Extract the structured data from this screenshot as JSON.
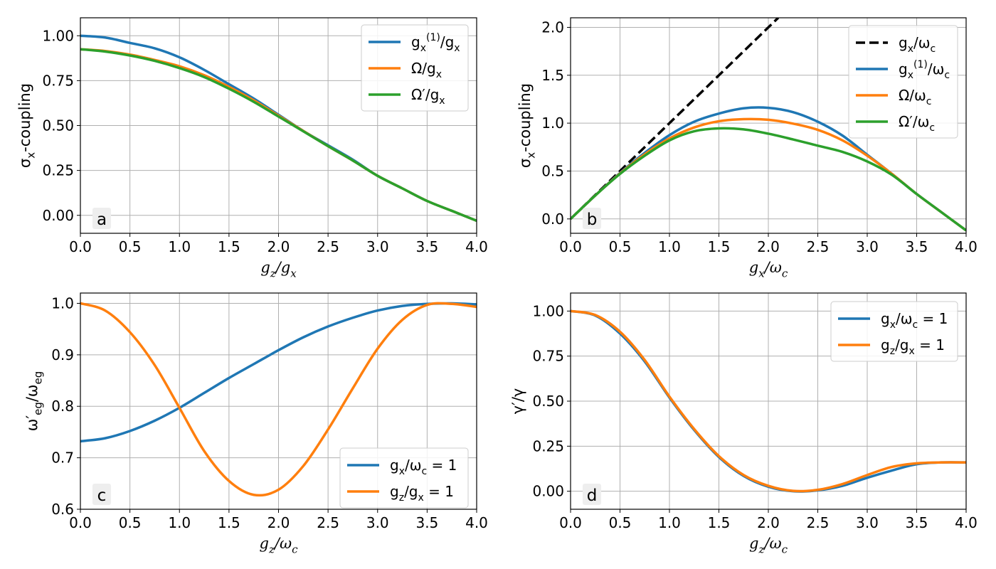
{
  "colors": {
    "blue": "#1f77b4",
    "orange": "#ff7f0e",
    "green": "#2ca02c",
    "black": "#000000",
    "grid": "#b0b0b0"
  },
  "chart_data": [
    {
      "panel": "a",
      "type": "line",
      "xlabel": "g_z/g_x",
      "ylabel": "σ_x-coupling",
      "xlim": [
        0,
        4
      ],
      "ylim": [
        -0.1,
        1.1
      ],
      "xticks": [
        "0.0",
        "0.5",
        "1.0",
        "1.5",
        "2.0",
        "2.5",
        "3.0",
        "3.5",
        "4.0"
      ],
      "yticks": [
        "0.00",
        "0.25",
        "0.50",
        "0.75",
        "1.00"
      ],
      "grid": true,
      "legend": "top-right",
      "series": [
        {
          "name": "g_x^(1)/g_x",
          "color": "blue",
          "x": [
            0,
            0.25,
            0.5,
            0.75,
            1.0,
            1.25,
            1.5,
            1.75,
            2.0,
            2.25,
            2.5,
            2.75,
            3.0,
            3.25,
            3.5,
            3.75,
            4.0
          ],
          "y": [
            1.0,
            0.99,
            0.96,
            0.93,
            0.88,
            0.81,
            0.73,
            0.65,
            0.56,
            0.47,
            0.39,
            0.31,
            0.22,
            0.15,
            0.08,
            0.025,
            -0.03
          ]
        },
        {
          "name": "Ω/g_x",
          "color": "orange",
          "x": [
            0,
            0.25,
            0.5,
            0.75,
            1.0,
            1.25,
            1.5,
            1.75,
            2.0,
            2.25,
            2.5,
            2.75,
            3.0,
            3.25,
            3.5,
            3.75,
            4.0
          ],
          "y": [
            0.925,
            0.915,
            0.895,
            0.865,
            0.83,
            0.78,
            0.715,
            0.64,
            0.555,
            0.47,
            0.385,
            0.305,
            0.22,
            0.15,
            0.08,
            0.025,
            -0.03
          ]
        },
        {
          "name": "Ω′/g_x",
          "color": "green",
          "x": [
            0,
            0.25,
            0.5,
            0.75,
            1.0,
            1.25,
            1.5,
            1.75,
            2.0,
            2.25,
            2.5,
            2.75,
            3.0,
            3.25,
            3.5,
            3.75,
            4.0
          ],
          "y": [
            0.925,
            0.912,
            0.89,
            0.86,
            0.82,
            0.77,
            0.705,
            0.632,
            0.55,
            0.468,
            0.385,
            0.305,
            0.22,
            0.15,
            0.08,
            0.025,
            -0.03
          ]
        }
      ]
    },
    {
      "panel": "b",
      "type": "line",
      "xlabel": "g_x/ω_c",
      "ylabel": "σ_x-coupling",
      "xlim": [
        0,
        4
      ],
      "ylim": [
        -0.15,
        2.1
      ],
      "xticks": [
        "0.0",
        "0.5",
        "1.0",
        "1.5",
        "2.0",
        "2.5",
        "3.0",
        "3.5",
        "4.0"
      ],
      "yticks": [
        "0.0",
        "0.5",
        "1.0",
        "1.5",
        "2.0"
      ],
      "grid": true,
      "legend": "top-right",
      "series": [
        {
          "name": "g_x/ω_c",
          "color": "black",
          "dashed": true,
          "x": [
            0,
            2.1
          ],
          "y": [
            0,
            2.1
          ]
        },
        {
          "name": "g_x^(1)/ω_c",
          "color": "blue",
          "x": [
            0,
            0.25,
            0.5,
            0.75,
            1.0,
            1.25,
            1.5,
            1.75,
            2.0,
            2.25,
            2.5,
            2.75,
            3.0,
            3.25,
            3.5,
            3.75,
            4.0
          ],
          "y": [
            0,
            0.245,
            0.48,
            0.69,
            0.875,
            1.015,
            1.1,
            1.155,
            1.16,
            1.115,
            1.015,
            0.87,
            0.67,
            0.47,
            0.26,
            0.07,
            -0.12
          ]
        },
        {
          "name": "Ω/ω_c",
          "color": "orange",
          "x": [
            0,
            0.25,
            0.5,
            0.75,
            1.0,
            1.25,
            1.5,
            1.75,
            2.0,
            2.25,
            2.5,
            2.75,
            3.0,
            3.25,
            3.5,
            3.75,
            4.0
          ],
          "y": [
            0,
            0.245,
            0.475,
            0.675,
            0.84,
            0.955,
            1.02,
            1.042,
            1.035,
            0.995,
            0.93,
            0.82,
            0.66,
            0.47,
            0.26,
            0.07,
            -0.12
          ]
        },
        {
          "name": "Ω′/ω_c",
          "color": "green",
          "x": [
            0,
            0.25,
            0.5,
            0.75,
            1.0,
            1.25,
            1.5,
            1.75,
            2.0,
            2.25,
            2.5,
            2.75,
            3.0,
            3.25,
            3.5,
            3.75,
            4.0
          ],
          "y": [
            0,
            0.245,
            0.47,
            0.66,
            0.82,
            0.915,
            0.945,
            0.935,
            0.89,
            0.83,
            0.765,
            0.7,
            0.6,
            0.46,
            0.26,
            0.07,
            -0.12
          ]
        }
      ]
    },
    {
      "panel": "c",
      "type": "line",
      "xlabel": "g_z/ω_c",
      "ylabel": "ω′_eg/ω_eg",
      "xlim": [
        0,
        4
      ],
      "ylim": [
        0.6,
        1.02
      ],
      "xticks": [
        "0.0",
        "0.5",
        "1.0",
        "1.5",
        "2.0",
        "2.5",
        "3.0",
        "3.5",
        "4.0"
      ],
      "yticks": [
        "0.6",
        "0.7",
        "0.8",
        "0.9",
        "1.0"
      ],
      "grid": true,
      "legend": "bottom-right",
      "series": [
        {
          "name": "g_x/ω_c = 1",
          "color": "blue",
          "x": [
            0,
            0.25,
            0.5,
            0.75,
            1.0,
            1.25,
            1.5,
            1.75,
            2.0,
            2.25,
            2.5,
            2.75,
            3.0,
            3.25,
            3.5,
            3.75,
            4.0
          ],
          "y": [
            0.732,
            0.738,
            0.752,
            0.772,
            0.797,
            0.826,
            0.855,
            0.882,
            0.909,
            0.934,
            0.955,
            0.972,
            0.986,
            0.995,
            0.999,
            1.0,
            0.998
          ]
        },
        {
          "name": "g_z/g_x = 1",
          "color": "orange",
          "x": [
            0,
            0.25,
            0.5,
            0.75,
            1.0,
            1.25,
            1.5,
            1.75,
            2.0,
            2.25,
            2.5,
            2.75,
            3.0,
            3.25,
            3.5,
            3.75,
            4.0
          ],
          "y": [
            1.0,
            0.986,
            0.944,
            0.88,
            0.797,
            0.713,
            0.655,
            0.628,
            0.638,
            0.684,
            0.755,
            0.835,
            0.912,
            0.968,
            0.997,
            0.999,
            0.993
          ]
        }
      ]
    },
    {
      "panel": "d",
      "type": "line",
      "xlabel": "g_z/ω_c",
      "ylabel": "γ′/γ",
      "xlim": [
        0,
        4
      ],
      "ylim": [
        -0.1,
        1.1
      ],
      "xticks": [
        "0.0",
        "0.5",
        "1.0",
        "1.5",
        "2.0",
        "2.5",
        "3.0",
        "3.5",
        "4.0"
      ],
      "yticks": [
        "0.00",
        "0.25",
        "0.50",
        "0.75",
        "1.00"
      ],
      "grid": true,
      "legend": "top-right",
      "series": [
        {
          "name": "g_x/ω_c = 1",
          "color": "blue",
          "x": [
            0,
            0.25,
            0.5,
            0.75,
            1.0,
            1.25,
            1.5,
            1.75,
            2.0,
            2.25,
            2.5,
            2.75,
            3.0,
            3.25,
            3.5,
            3.75,
            4.0
          ],
          "y": [
            1.0,
            0.975,
            0.875,
            0.72,
            0.52,
            0.34,
            0.19,
            0.085,
            0.025,
            0.0,
            0.005,
            0.03,
            0.075,
            0.115,
            0.15,
            0.16,
            0.16
          ]
        },
        {
          "name": "g_z/g_x = 1",
          "color": "orange",
          "x": [
            0,
            0.25,
            0.5,
            0.75,
            1.0,
            1.25,
            1.5,
            1.75,
            2.0,
            2.25,
            2.5,
            2.75,
            3.0,
            3.25,
            3.5,
            3.75,
            4.0
          ],
          "y": [
            1.0,
            0.978,
            0.885,
            0.728,
            0.525,
            0.345,
            0.195,
            0.09,
            0.03,
            0.002,
            0.008,
            0.04,
            0.09,
            0.135,
            0.155,
            0.16,
            0.16
          ]
        }
      ]
    }
  ]
}
